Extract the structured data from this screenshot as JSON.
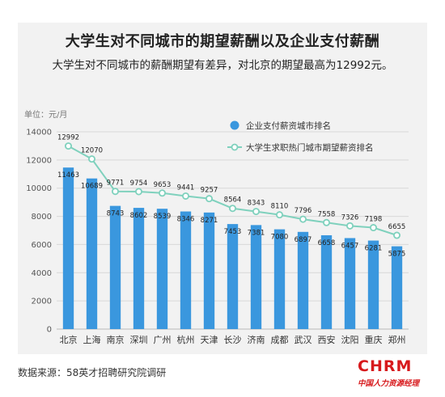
{
  "header": {
    "title": "大学生对不同城市的期望薪酬以及企业支付薪酬",
    "subtitle": "大学生对不同城市的薪酬期望有差异，对北京的期望最高为12992元。"
  },
  "footer": {
    "source": "数据来源：58英才招聘研究院调研"
  },
  "logo": {
    "main": "CHRM",
    "sub": "中国人力资源经理"
  },
  "colors": {
    "bar": "#3a97de",
    "line": "#7fd1bd",
    "panel": "#f2f2f2"
  },
  "chart_data": {
    "type": "bar",
    "unit_label": "单位：元/月",
    "categories": [
      "北京",
      "上海",
      "南京",
      "深圳",
      "广州",
      "杭州",
      "天津",
      "长沙",
      "济南",
      "成都",
      "武汉",
      "西安",
      "沈阳",
      "重庆",
      "郑州"
    ],
    "series": [
      {
        "name": "企业支付薪资城市排名",
        "type": "bar",
        "values": [
          11463,
          10689,
          8743,
          8602,
          8539,
          8346,
          8271,
          7453,
          7381,
          7080,
          6897,
          6658,
          6457,
          6281,
          5875
        ]
      },
      {
        "name": "大学生求职热门城市期望薪资排名",
        "type": "line",
        "values": [
          12992,
          12070,
          9771,
          9754,
          9653,
          9441,
          9257,
          8564,
          8343,
          8110,
          7796,
          7558,
          7326,
          7198,
          6655
        ]
      }
    ],
    "yticks": [
      0,
      2000,
      4000,
      6000,
      8000,
      10000,
      12000,
      14000
    ],
    "ylim": [
      0,
      14000
    ],
    "legend_position": "top-right",
    "grid": true
  }
}
